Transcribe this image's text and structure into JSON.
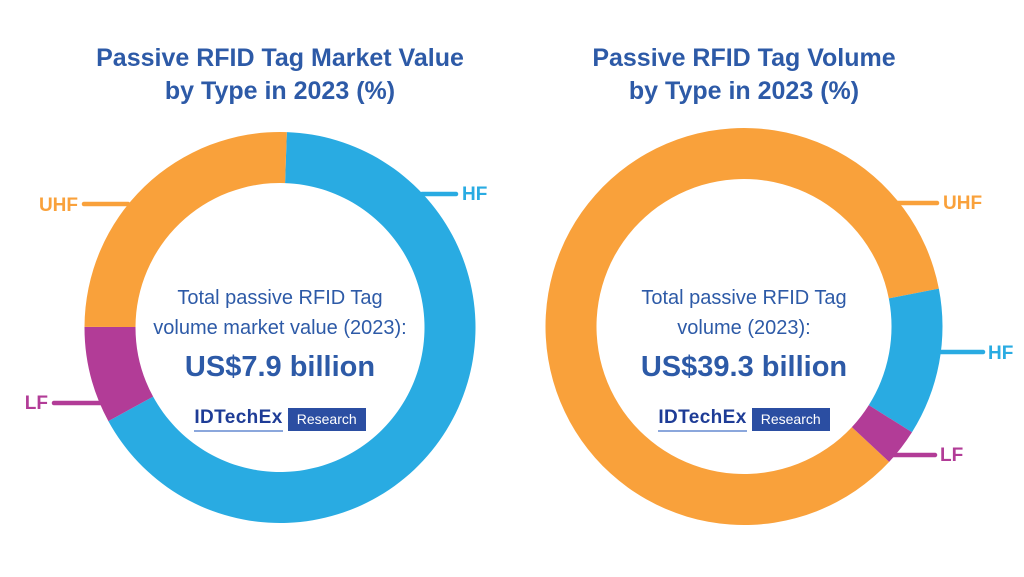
{
  "logo": {
    "brand": "IDTechEx",
    "suffix": "Research"
  },
  "colors": {
    "title_navy": "#2D5AA7",
    "hf_blue": "#29ABE2",
    "uhf_orange": "#F9A13B",
    "lf_magenta": "#B23C97",
    "logo_brand_navy": "#1E3C96",
    "logo_box_navy": "#2B4EA2",
    "logo_underline_blue": "#8BA7DC",
    "background": "#FFFFFF"
  },
  "chart_data": [
    {
      "type": "pie",
      "variant": "donut",
      "title": "Passive RFID Tag Market Value by Type in 2023 (%)",
      "title_lines": [
        "Passive RFID Tag Market Value",
        "by Type in 2023 (%)"
      ],
      "start_angle_deg": 2,
      "direction": "clockwise",
      "legend": "outside callout labels",
      "segments": [
        {
          "label": "HF",
          "value_pct": 66.5,
          "color": "#29ABE2"
        },
        {
          "label": "LF",
          "value_pct": 8.0,
          "color": "#B23C97"
        },
        {
          "label": "UHF",
          "value_pct": 25.5,
          "color": "#F9A13B"
        }
      ],
      "center_text": [
        "Total passive RFID Tag",
        "volume market value (2023):"
      ],
      "center_value": "US$7.9 billion"
    },
    {
      "type": "pie",
      "variant": "donut",
      "title": "Passive RFID Tag Volume by Type in 2023 (%)",
      "title_lines": [
        "Passive RFID Tag Volume",
        "by Type in 2023 (%)"
      ],
      "start_angle_deg": 133,
      "direction": "clockwise",
      "legend": "outside callout labels",
      "segments": [
        {
          "label": "UHF",
          "value_pct": 85.0,
          "color": "#F9A13B"
        },
        {
          "label": "HF",
          "value_pct": 12.0,
          "color": "#29ABE2"
        },
        {
          "label": "LF",
          "value_pct": 3.0,
          "color": "#B23C97"
        }
      ],
      "center_text": [
        "Total passive RFID Tag",
        "volume (2023):"
      ],
      "center_value": "US$39.3 billion"
    }
  ]
}
